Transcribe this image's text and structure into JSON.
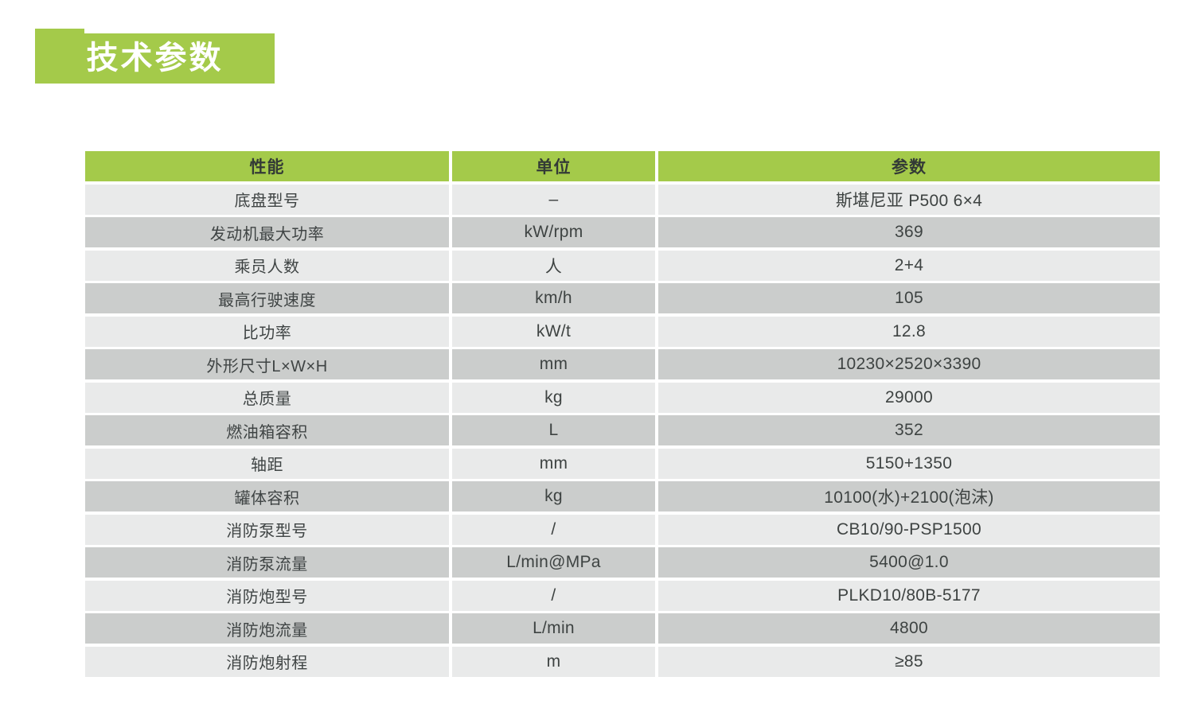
{
  "page": {
    "title_banner": "技术参数"
  },
  "colors": {
    "accent_green": "#a4ca4a",
    "row_light": "#e9eaea",
    "row_dark": "#cbcdcc",
    "header_text": "#333a36",
    "cell_text": "#3f4444",
    "banner_text": "#ffffff"
  },
  "table": {
    "columns": [
      {
        "label": "性能"
      },
      {
        "label": "单位"
      },
      {
        "label": "参数"
      }
    ],
    "rows": [
      {
        "name": "底盘型号",
        "unit": "–",
        "value": "斯堪尼亚 P500 6×4"
      },
      {
        "name": "发动机最大功率",
        "unit": "kW/rpm",
        "value": "369"
      },
      {
        "name": "乘员人数",
        "unit": "人",
        "value": "2+4"
      },
      {
        "name": "最高行驶速度",
        "unit": "km/h",
        "value": "105"
      },
      {
        "name": "比功率",
        "unit": "kW/t",
        "value": "12.8"
      },
      {
        "name": "外形尺寸L×W×H",
        "unit": "mm",
        "value": "10230×2520×3390"
      },
      {
        "name": "总质量",
        "unit": "kg",
        "value": "29000"
      },
      {
        "name": "燃油箱容积",
        "unit": "L",
        "value": "352"
      },
      {
        "name": "轴距",
        "unit": "mm",
        "value": "5150+1350"
      },
      {
        "name": "罐体容积",
        "unit": "kg",
        "value": "10100(水)+2100(泡沫)"
      },
      {
        "name": "消防泵型号",
        "unit": "/",
        "value": "CB10/90-PSP1500"
      },
      {
        "name": "消防泵流量",
        "unit": "L/min@MPa",
        "value": "5400@1.0"
      },
      {
        "name": "消防炮型号",
        "unit": "/",
        "value": "PLKD10/80B-5177"
      },
      {
        "name": "消防炮流量",
        "unit": "L/min",
        "value": "4800"
      },
      {
        "name": "消防炮射程",
        "unit": "m",
        "value": "≥85"
      }
    ]
  }
}
